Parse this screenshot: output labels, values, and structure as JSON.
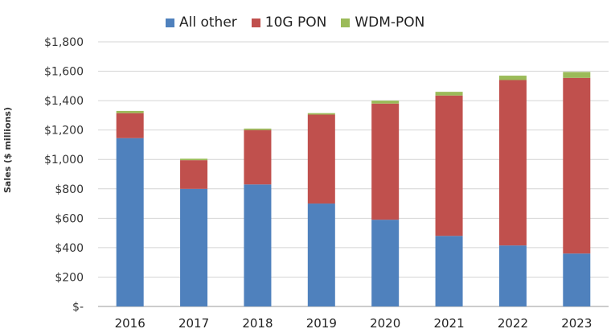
{
  "chart_data": {
    "type": "bar",
    "stacked": true,
    "ylabel": "Sales ($ millions)",
    "xlabel": "",
    "title": "",
    "ylim": [
      0,
      1800
    ],
    "yticks": [
      0,
      200,
      400,
      600,
      800,
      1000,
      1200,
      1400,
      1600,
      1800
    ],
    "ytick_labels": [
      "$-",
      "$200",
      "$400",
      "$600",
      "$800",
      "$1,000",
      "$1,200",
      "$1,400",
      "$1,600",
      "$1,800"
    ],
    "categories": [
      "2016",
      "2017",
      "2018",
      "2019",
      "2020",
      "2021",
      "2022",
      "2023"
    ],
    "legend_position": "top",
    "grid": true,
    "series": [
      {
        "name": "All other",
        "color": "#4f81bd",
        "values": [
          1145,
          800,
          830,
          700,
          590,
          480,
          415,
          360
        ]
      },
      {
        "name": "10G PON",
        "color": "#c0504d",
        "values": [
          170,
          195,
          370,
          605,
          790,
          955,
          1125,
          1195
        ]
      },
      {
        "name": "WDM-PON",
        "color": "#9bbb59",
        "values": [
          15,
          10,
          10,
          10,
          20,
          25,
          30,
          40
        ]
      }
    ]
  }
}
